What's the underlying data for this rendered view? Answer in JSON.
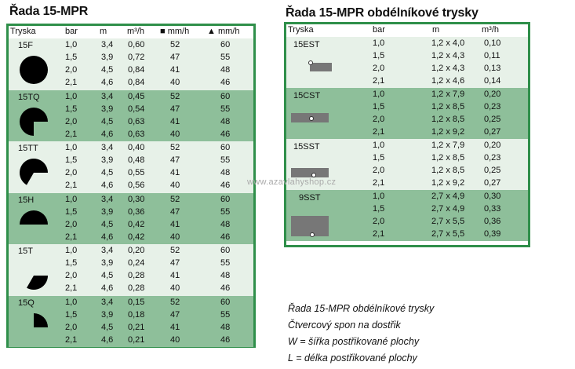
{
  "left_title": "Řada 15-MPR",
  "right_title": "Řada 15-MPR obdélníkové trysky",
  "left_header": {
    "tryska": "Tryska",
    "bar": "bar",
    "m": "m",
    "m3h": "m³/h",
    "sq": "■ mm/h",
    "tri": "▲ mm/h"
  },
  "left_groups": [
    {
      "name": "15F",
      "shape": "full",
      "rows": [
        [
          "1,0",
          "3,4",
          "0,60",
          "52",
          "60"
        ],
        [
          "1,5",
          "3,9",
          "0,72",
          "47",
          "55"
        ],
        [
          "2,0",
          "4,5",
          "0,84",
          "41",
          "48"
        ],
        [
          "2,1",
          "4,6",
          "0,84",
          "40",
          "46"
        ]
      ]
    },
    {
      "name": "15TQ",
      "shape": "three-quarter",
      "rows": [
        [
          "1,0",
          "3,4",
          "0,45",
          "52",
          "60"
        ],
        [
          "1,5",
          "3,9",
          "0,54",
          "47",
          "55"
        ],
        [
          "2,0",
          "4,5",
          "0,63",
          "41",
          "48"
        ],
        [
          "2,1",
          "4,6",
          "0,63",
          "40",
          "46"
        ]
      ]
    },
    {
      "name": "15TT",
      "shape": "two-thirds",
      "rows": [
        [
          "1,0",
          "3,4",
          "0,40",
          "52",
          "60"
        ],
        [
          "1,5",
          "3,9",
          "0,48",
          "47",
          "55"
        ],
        [
          "2,0",
          "4,5",
          "0,55",
          "41",
          "48"
        ],
        [
          "2,1",
          "4,6",
          "0,56",
          "40",
          "46"
        ]
      ]
    },
    {
      "name": "15H",
      "shape": "half",
      "rows": [
        [
          "1,0",
          "3,4",
          "0,30",
          "52",
          "60"
        ],
        [
          "1,5",
          "3,9",
          "0,36",
          "47",
          "55"
        ],
        [
          "2,0",
          "4,5",
          "0,42",
          "41",
          "48"
        ],
        [
          "2,1",
          "4,6",
          "0,42",
          "40",
          "46"
        ]
      ]
    },
    {
      "name": "15T",
      "shape": "third",
      "rows": [
        [
          "1,0",
          "3,4",
          "0,20",
          "52",
          "60"
        ],
        [
          "1,5",
          "3,9",
          "0,24",
          "47",
          "55"
        ],
        [
          "2,0",
          "4,5",
          "0,28",
          "41",
          "48"
        ],
        [
          "2,1",
          "4,6",
          "0,28",
          "40",
          "46"
        ]
      ]
    },
    {
      "name": "15Q",
      "shape": "quarter",
      "rows": [
        [
          "1,0",
          "3,4",
          "0,15",
          "52",
          "60"
        ],
        [
          "1,5",
          "3,9",
          "0,18",
          "47",
          "55"
        ],
        [
          "2,0",
          "4,5",
          "0,21",
          "41",
          "48"
        ],
        [
          "2,1",
          "4,6",
          "0,21",
          "40",
          "46"
        ]
      ]
    }
  ],
  "right_header": {
    "tryska": "Tryska",
    "bar": "bar",
    "m": "m",
    "m3h": "m³/h"
  },
  "right_groups": [
    {
      "name": "15EST",
      "rows": [
        [
          "1,0",
          "1,2 x 4,0",
          "0,10"
        ],
        [
          "1,5",
          "1,2 x 4,3",
          "0,11"
        ],
        [
          "2,0",
          "1,2 x 4,3",
          "0,13"
        ],
        [
          "2,1",
          "1,2 x 4,6",
          "0,14"
        ]
      ]
    },
    {
      "name": "15CST",
      "rows": [
        [
          "1,0",
          "1,2 x 7,9",
          "0,20"
        ],
        [
          "1,5",
          "1,2 x 8,5",
          "0,23"
        ],
        [
          "2,0",
          "1,2 x 8,5",
          "0,25"
        ],
        [
          "2,1",
          "1,2 x 9,2",
          "0,27"
        ]
      ]
    },
    {
      "name": "15SST",
      "rows": [
        [
          "1,0",
          "1,2 x 7,9",
          "0,20"
        ],
        [
          "1,5",
          "1,2 x 8,5",
          "0,23"
        ],
        [
          "2,0",
          "1,2 x 8,5",
          "0,25"
        ],
        [
          "2,1",
          "1,2 x 9,2",
          "0,27"
        ]
      ]
    },
    {
      "name": "9SST",
      "rows": [
        [
          "1,0",
          "2,7 x 4,9",
          "0,30"
        ],
        [
          "1,5",
          "2,7 x 4,9",
          "0,33"
        ],
        [
          "2,0",
          "2,7 x 5,5",
          "0,36"
        ],
        [
          "2,1",
          "2,7 x 5,5",
          "0,39"
        ]
      ]
    }
  ],
  "legend": [
    "Řada 15-MPR obdélníkové trysky",
    "Čtvercový spon na dostřik",
    "W = šířka postřikované plochy",
    "L = délka postřikované plochy"
  ],
  "watermark": "www.azavlahyshop.cz"
}
